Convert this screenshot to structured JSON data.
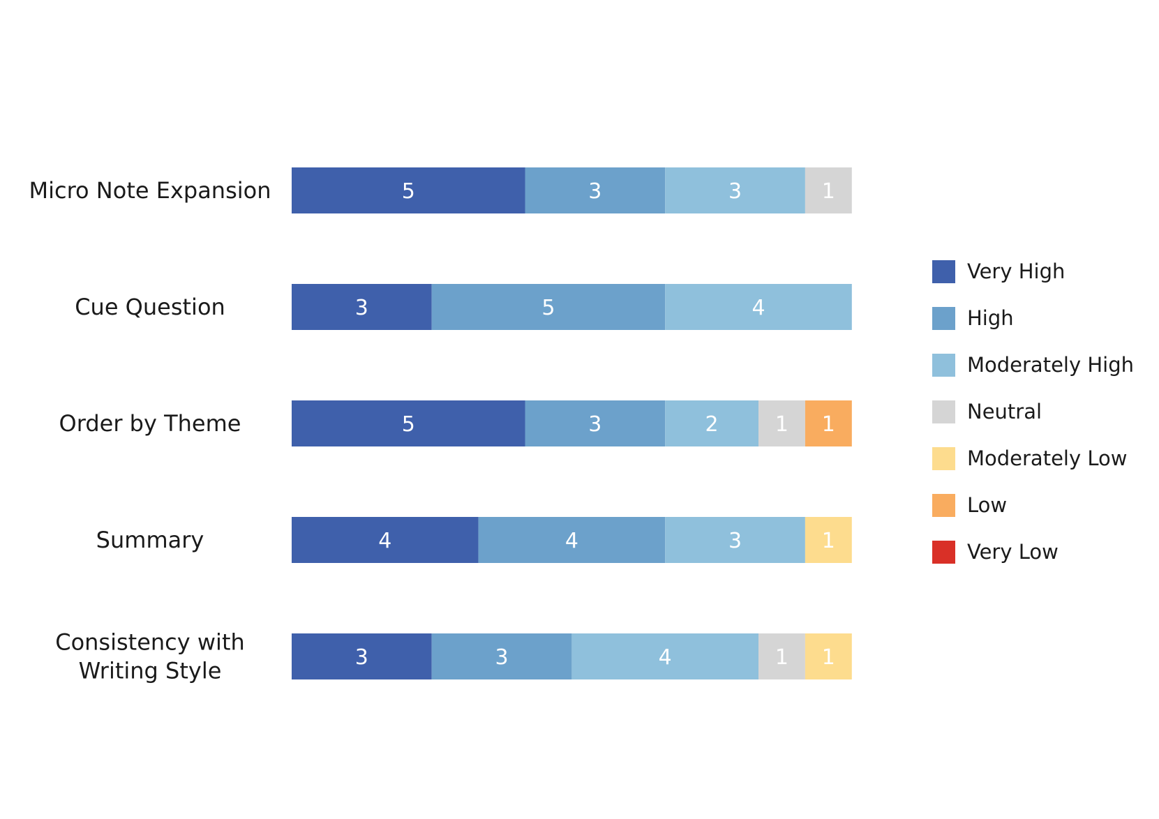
{
  "chart_data": {
    "type": "bar",
    "orientation": "horizontal",
    "stacked": true,
    "categories": [
      "Micro Note Expansion",
      "Cue Question",
      "Order by Theme",
      "Summary",
      "Consistency with\nWriting Style"
    ],
    "series": [
      {
        "name": "Very High",
        "color": "#3f60ab",
        "values": [
          5,
          3,
          5,
          4,
          3
        ]
      },
      {
        "name": "High",
        "color": "#6ca1cb",
        "values": [
          3,
          5,
          3,
          4,
          3
        ]
      },
      {
        "name": "Moderately High",
        "color": "#8fc0dc",
        "values": [
          3,
          4,
          2,
          3,
          4
        ]
      },
      {
        "name": "Neutral",
        "color": "#d5d5d5",
        "values": [
          1,
          0,
          1,
          0,
          1
        ]
      },
      {
        "name": "Moderately Low",
        "color": "#fddc8e",
        "values": [
          0,
          0,
          0,
          1,
          1
        ]
      },
      {
        "name": "Low",
        "color": "#f9ac5f",
        "values": [
          0,
          0,
          1,
          0,
          0
        ]
      },
      {
        "name": "Very Low",
        "color": "#d93027",
        "values": [
          0,
          0,
          0,
          0,
          0
        ]
      }
    ],
    "xlim": [
      0,
      12
    ],
    "legend_position": "right",
    "grid": false,
    "title": "",
    "xlabel": "",
    "ylabel": ""
  }
}
